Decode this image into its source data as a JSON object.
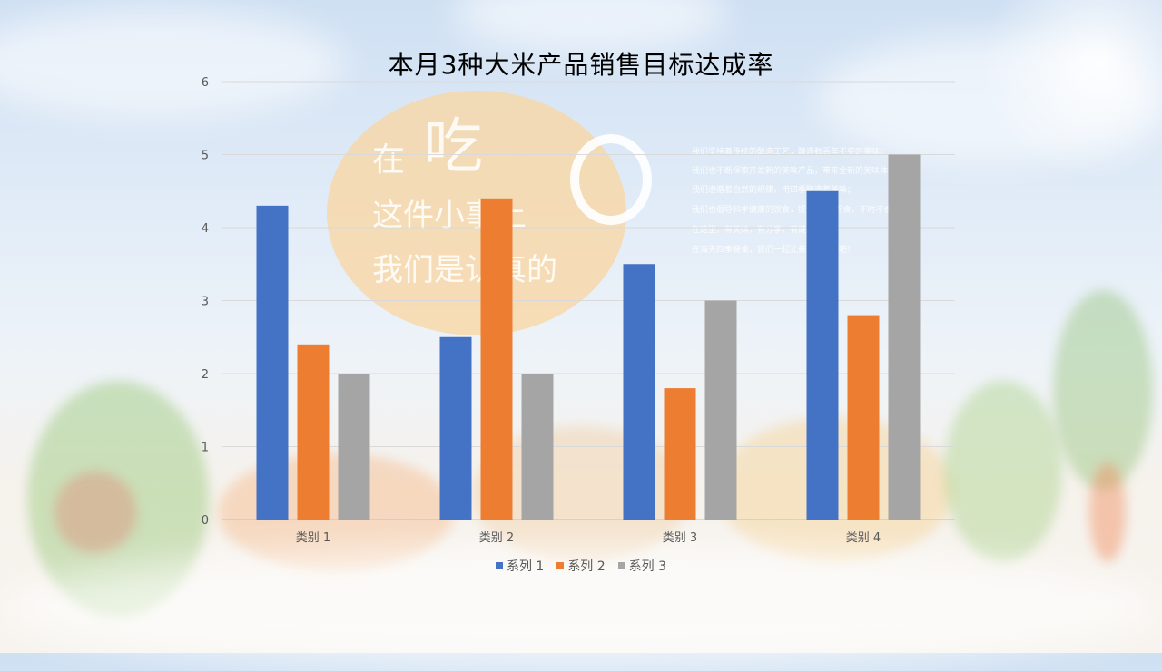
{
  "chart_data": {
    "type": "bar",
    "title": "本月3种大米产品销售目标达成率",
    "categories": [
      "类别 1",
      "类别 2",
      "类别 3",
      "类别 4"
    ],
    "series": [
      {
        "name": "系列 1",
        "color": "#4472C4",
        "values": [
          4.3,
          2.5,
          3.5,
          4.5
        ]
      },
      {
        "name": "系列 2",
        "color": "#ED7D31",
        "values": [
          2.4,
          4.4,
          1.8,
          2.8
        ]
      },
      {
        "name": "系列 3",
        "color": "#A5A5A5",
        "values": [
          2,
          2,
          3,
          5
        ]
      }
    ],
    "ylim": [
      0,
      6
    ],
    "yticks": [
      "0",
      "1",
      "2",
      "3",
      "4",
      "5",
      "6"
    ],
    "grid": true,
    "legend_position": "bottom"
  },
  "decoration": {
    "big_char_1": "在",
    "big_char_2": "吃",
    "line_2": "这件小事上",
    "line_3": "我们是认真的",
    "small_lines": [
      "我们坚持着传统的酿造工艺，酿造数百年不变的美味；",
      "我们也不断探索开发新的美味产品，带来全新的美味体验；",
      "我们遵循着自然的规律，用四季酿造着美味；",
      "我们也倡导科学健康的饮食，提倡“顺时而食，不时不食”，",
      "在这里，有美味，有分享，有健康。",
      "在海天四季餐桌，我们一起让美味吃起来吧！"
    ]
  }
}
